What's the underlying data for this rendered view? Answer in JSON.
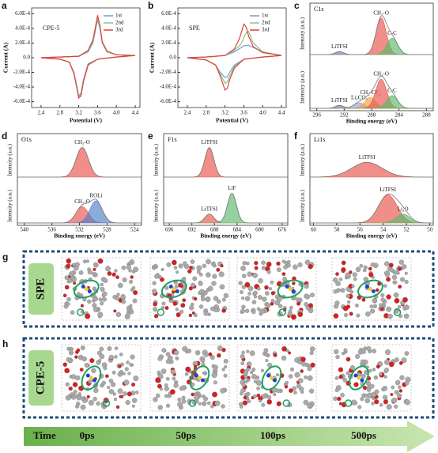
{
  "chart_data": [
    {
      "type": "cv",
      "panel": "a",
      "label": "CPE-5",
      "xlabel": "Potential (V)",
      "ylabel": "Current (A)",
      "legend": "top-right",
      "x": [
        2.4,
        2.8,
        3.2,
        3.4,
        3.5,
        3.55,
        3.6,
        3.65,
        3.7,
        3.8,
        4.0,
        4.4,
        4.0,
        3.6,
        3.4,
        3.3,
        3.25,
        3.2,
        3.1,
        3.0,
        2.8,
        2.4
      ],
      "series": [
        {
          "name": "1st",
          "color": "#6d9fd0",
          "values": [
            0,
            1e-05,
            2e-05,
            8e-05,
            0.0002,
            0.00035,
            0.00052,
            0.0004,
            0.0002,
            8e-05,
            4e-05,
            3e-05,
            1e-05,
            -2e-05,
            -8e-05,
            -0.0003,
            -0.00048,
            -0.00052,
            -0.0002,
            -6e-05,
            -2e-05,
            0
          ]
        },
        {
          "name": "2nd",
          "color": "#8cc48c",
          "values": [
            0,
            1e-05,
            2e-05,
            9e-05,
            0.00022,
            0.00037,
            0.00056,
            0.00042,
            0.00021,
            8e-05,
            4e-05,
            3e-05,
            1e-05,
            -2e-05,
            -9e-05,
            -0.00031,
            -0.0005,
            -0.00053,
            -0.00021,
            -6e-05,
            -2e-05,
            0
          ]
        },
        {
          "name": "3rd",
          "color": "#e0403a",
          "values": [
            0,
            1e-05,
            2e-05,
            0.0001,
            0.00024,
            0.0004,
            0.00058,
            0.00044,
            0.00022,
            9e-05,
            4e-05,
            3e-05,
            1e-05,
            -2e-05,
            -0.0001,
            -0.00033,
            -0.00052,
            -0.00055,
            -0.00022,
            -6e-05,
            -2e-05,
            0
          ]
        }
      ],
      "xlim": [
        2.2,
        4.5
      ],
      "ylim": [
        -0.00068,
        0.00068
      ],
      "xticks": [
        2.4,
        2.8,
        3.2,
        3.6,
        {
          "value": 4,
          "label": "4.0"
        },
        4.4
      ],
      "yticks": [
        {
          "value": -0.0006,
          "label": "-6.0E-4"
        },
        {
          "value": -0.0004,
          "label": "-4.0E-4"
        },
        {
          "value": -0.0002,
          "label": "-2.0E-4"
        },
        {
          "value": 0,
          "label": "0.0"
        },
        {
          "value": 0.0002,
          "label": "2.0E-4"
        },
        {
          "value": 0.0004,
          "label": "4.0E-4"
        },
        {
          "value": 0.0006,
          "label": "6.0E-4"
        }
      ]
    },
    {
      "type": "cv",
      "panel": "b",
      "label": "SPE",
      "xlabel": "Potential (V)",
      "ylabel": "Current (A)",
      "legend": "top-right",
      "x": [
        2.4,
        2.8,
        3.2,
        3.4,
        3.5,
        3.55,
        3.6,
        3.65,
        3.7,
        3.8,
        4.0,
        4.4,
        4.0,
        3.6,
        3.4,
        3.3,
        3.25,
        3.2,
        3.1,
        3.0,
        2.8,
        2.4
      ],
      "series": [
        {
          "name": "1st",
          "color": "#6d9fd0",
          "values": [
            0,
            1e-05,
            3e-05,
            8e-05,
            0.00012,
            0.00014,
            0.00016,
            0.00017,
            0.00017,
            0.00014,
            8e-05,
            3e-05,
            1e-05,
            -2e-05,
            -0.0001,
            -0.0002,
            -0.00026,
            -0.00027,
            -0.0002,
            -0.0001,
            -3e-05,
            0
          ]
        },
        {
          "name": "2nd",
          "color": "#8cc48c",
          "values": [
            0,
            1e-05,
            3e-05,
            0.0001,
            0.00016,
            0.0002,
            0.00028,
            0.00034,
            0.00036,
            0.0002,
            8e-05,
            3e-05,
            1e-05,
            -2e-05,
            -0.00012,
            -0.00025,
            -0.00033,
            -0.00035,
            -0.00022,
            -0.0001,
            -3e-05,
            0
          ]
        },
        {
          "name": "3rd",
          "color": "#e0403a",
          "values": [
            0,
            1e-05,
            3e-05,
            0.00012,
            0.00025,
            0.00035,
            0.00046,
            0.00042,
            0.0003,
            0.00015,
            7e-05,
            3e-05,
            1e-05,
            -2e-05,
            -0.00014,
            -0.0003,
            -0.00042,
            -0.00044,
            -0.00025,
            -0.0001,
            -3e-05,
            0
          ]
        }
      ],
      "xlim": [
        2.2,
        4.5
      ],
      "ylim": [
        -0.00068,
        0.00068
      ],
      "xticks": [
        2.4,
        2.8,
        3.2,
        3.6,
        {
          "value": 4,
          "label": "4.0"
        },
        4.4
      ],
      "yticks": [
        {
          "value": -0.0006,
          "label": "-6.0E-4"
        },
        {
          "value": -0.0004,
          "label": "-4.0E-4"
        },
        {
          "value": -0.0002,
          "label": "-2.0E-4"
        },
        {
          "value": 0,
          "label": "0.0"
        },
        {
          "value": 0.0002,
          "label": "2.0E-4"
        },
        {
          "value": 0.0004,
          "label": "4.0E-4"
        },
        {
          "value": 0.0006,
          "label": "6.0E-4"
        }
      ]
    },
    {
      "type": "xps",
      "panel": "c",
      "label": "C1s",
      "xlabel": "Binding energy (eV)",
      "ylabel": "Intensity (a.u.)",
      "xlim": [
        297,
        279
      ],
      "ylim": [
        0,
        1.15
      ],
      "xticks": [
        296,
        292,
        288,
        284,
        280
      ],
      "spectra": [
        {
          "peaks": [
            {
              "label": "LiTFSI",
              "center": 292.7,
              "height": 0.08,
              "width": 0.6,
              "color": "#7d6fc4"
            },
            {
              "label": "CH₂-O",
              "center": 286.6,
              "height": 1.0,
              "width": 0.75,
              "color": "#e8534a"
            },
            {
              "label": "C-C",
              "center": 285.0,
              "height": 0.45,
              "width": 0.8,
              "color": "#5cb86c"
            }
          ]
        },
        {
          "peaks": [
            {
              "label": "LiTFSI",
              "center": 292.7,
              "height": 0.08,
              "width": 0.6,
              "color": "#7d6fc4"
            },
            {
              "label": "Li₂CO₃",
              "center": 289.8,
              "height": 0.15,
              "width": 0.8,
              "color": "#8fa3d9"
            },
            {
              "label": "CH₂-CF₂",
              "center": 288.2,
              "height": 0.3,
              "width": 0.8,
              "color": "#f2a23c"
            },
            {
              "label": "CH₂-O",
              "center": 286.6,
              "height": 0.8,
              "width": 0.8,
              "color": "#e8534a"
            },
            {
              "label": "C-C",
              "center": 285.0,
              "height": 0.35,
              "width": 0.8,
              "color": "#5cb86c"
            }
          ]
        }
      ]
    },
    {
      "type": "xps",
      "panel": "d",
      "label": "O1s",
      "xlabel": "Binding energy (eV)",
      "ylabel": "Intensity (a.u.)",
      "xlim": [
        541,
        523
      ],
      "ylim": [
        0,
        1.15
      ],
      "xticks": [
        540,
        536,
        532,
        528,
        524
      ],
      "spectra": [
        {
          "peaks": [
            {
              "label": "CH₂-O",
              "center": 531.6,
              "height": 1.0,
              "width": 0.9,
              "color": "#e8534a"
            }
          ]
        },
        {
          "peaks": [
            {
              "label": "CH₂-O",
              "center": 531.6,
              "height": 0.55,
              "width": 0.9,
              "color": "#e8534a"
            },
            {
              "label": "ROLi",
              "center": 529.6,
              "height": 0.75,
              "width": 0.9,
              "color": "#4c7fc4"
            }
          ]
        }
      ]
    },
    {
      "type": "xps",
      "panel": "e",
      "label": "F1s",
      "xlabel": "Binding energy (eV)",
      "ylabel": "Intensity (a.u.)",
      "xlim": [
        697,
        675
      ],
      "ylim": [
        0,
        1.15
      ],
      "xticks": [
        696,
        692,
        688,
        684,
        680,
        676
      ],
      "spectra": [
        {
          "peaks": [
            {
              "label": "LiTFSI",
              "center": 688.9,
              "height": 1.0,
              "width": 0.8,
              "color": "#e8534a"
            }
          ]
        },
        {
          "peaks": [
            {
              "label": "LiTFSI",
              "center": 688.9,
              "height": 0.3,
              "width": 0.8,
              "color": "#e8534a"
            },
            {
              "label": "LiF",
              "center": 684.9,
              "height": 1.0,
              "width": 0.8,
              "color": "#5cb86c"
            }
          ]
        }
      ]
    },
    {
      "type": "xps",
      "panel": "f",
      "label": "Li1s",
      "xlabel": "Binding energy (eV)",
      "ylabel": "Intensity (a.u.)",
      "xlim": [
        60.3,
        49.7
      ],
      "ylim": [
        0,
        1.15
      ],
      "xticks": [
        60,
        58,
        56,
        54,
        52,
        50
      ],
      "spectra": [
        {
          "peaks": [
            {
              "label": "LiTFSI",
              "center": 55.4,
              "height": 0.5,
              "width": 1.3,
              "color": "#e8534a"
            }
          ]
        },
        {
          "peaks": [
            {
              "label": "LiTFSI",
              "center": 53.6,
              "height": 0.95,
              "width": 0.8,
              "color": "#e8534a"
            },
            {
              "label": "Li₂O",
              "center": 52.3,
              "height": 0.3,
              "width": 0.6,
              "color": "#5cb86c"
            }
          ]
        }
      ]
    }
  ],
  "md": {
    "rows": [
      {
        "panel": "g",
        "label": "SPE"
      },
      {
        "panel": "h",
        "label": "CPE-5"
      }
    ]
  },
  "timeline": {
    "label": "Time",
    "ticks": [
      "0ps",
      "50ps",
      "100ps",
      "500ps"
    ]
  }
}
